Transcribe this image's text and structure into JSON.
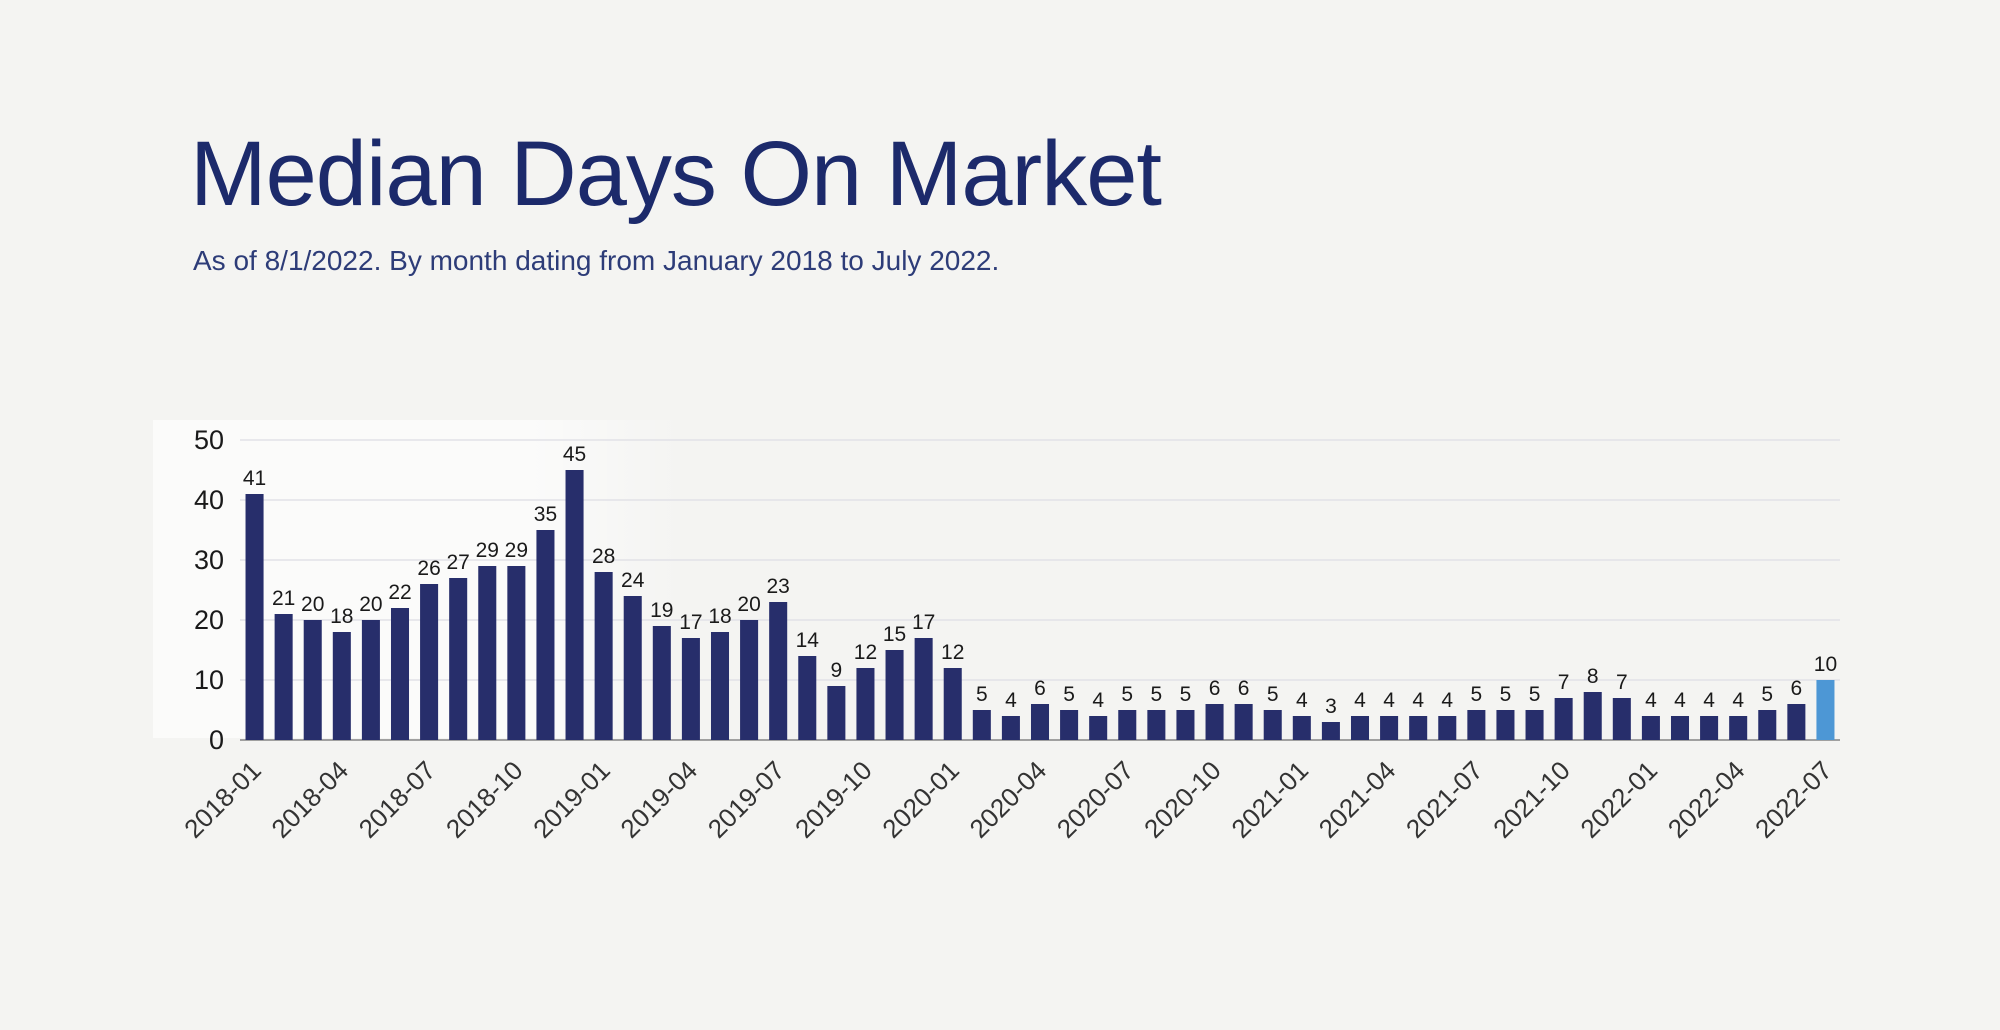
{
  "header": {
    "title": "Median Days On Market",
    "subtitle": "As of 8/1/2022. By month dating from January 2018 to July 2022."
  },
  "colors": {
    "background": "#f4f4f2",
    "title": "#1c2a6b",
    "subtitle": "#2d3c78",
    "bar": "#272e6b",
    "bar_highlight": "#4d97d5",
    "gridline": "#e2e2e7",
    "axis_line": "#a0a0a0",
    "value_label": "#1a1a1a",
    "tick_label": "#333333"
  },
  "chart_data": {
    "type": "bar",
    "title": "Median Days On Market",
    "xlabel": "",
    "ylabel": "",
    "ylim": [
      0,
      50
    ],
    "yticks": [
      0,
      10,
      20,
      30,
      40,
      50
    ],
    "grid": true,
    "legend": false,
    "highlight_category": "2022-07",
    "categories": [
      "2018-01",
      "2018-02",
      "2018-03",
      "2018-04",
      "2018-05",
      "2018-06",
      "2018-07",
      "2018-08",
      "2018-09",
      "2018-10",
      "2018-11",
      "2018-12",
      "2019-01",
      "2019-02",
      "2019-03",
      "2019-04",
      "2019-05",
      "2019-06",
      "2019-07",
      "2019-08",
      "2019-09",
      "2019-10",
      "2019-11",
      "2019-12",
      "2020-01",
      "2020-02",
      "2020-03",
      "2020-04",
      "2020-05",
      "2020-06",
      "2020-07",
      "2020-08",
      "2020-09",
      "2020-10",
      "2020-11",
      "2020-12",
      "2021-01",
      "2021-02",
      "2021-03",
      "2021-04",
      "2021-05",
      "2021-06",
      "2021-07",
      "2021-08",
      "2021-09",
      "2021-10",
      "2021-11",
      "2021-12",
      "2022-01",
      "2022-02",
      "2022-03",
      "2022-04",
      "2022-05",
      "2022-06",
      "2022-07"
    ],
    "values": [
      41,
      21,
      20,
      18,
      20,
      22,
      26,
      27,
      29,
      29,
      35,
      45,
      28,
      24,
      19,
      17,
      18,
      20,
      23,
      14,
      9,
      12,
      15,
      17,
      12,
      5,
      4,
      6,
      5,
      4,
      5,
      5,
      5,
      6,
      6,
      5,
      4,
      3,
      4,
      4,
      4,
      4,
      5,
      5,
      5,
      7,
      8,
      7,
      4,
      4,
      4,
      4,
      5,
      6,
      10
    ],
    "x_tick_labels": [
      "2018-01",
      "2018-04",
      "2018-07",
      "2018-10",
      "2019-01",
      "2019-04",
      "2019-07",
      "2019-10",
      "2020-01",
      "2020-04",
      "2020-07",
      "2020-10",
      "2021-01",
      "2021-04",
      "2021-07",
      "2021-10",
      "2022-01",
      "2022-04",
      "2022-07"
    ]
  }
}
